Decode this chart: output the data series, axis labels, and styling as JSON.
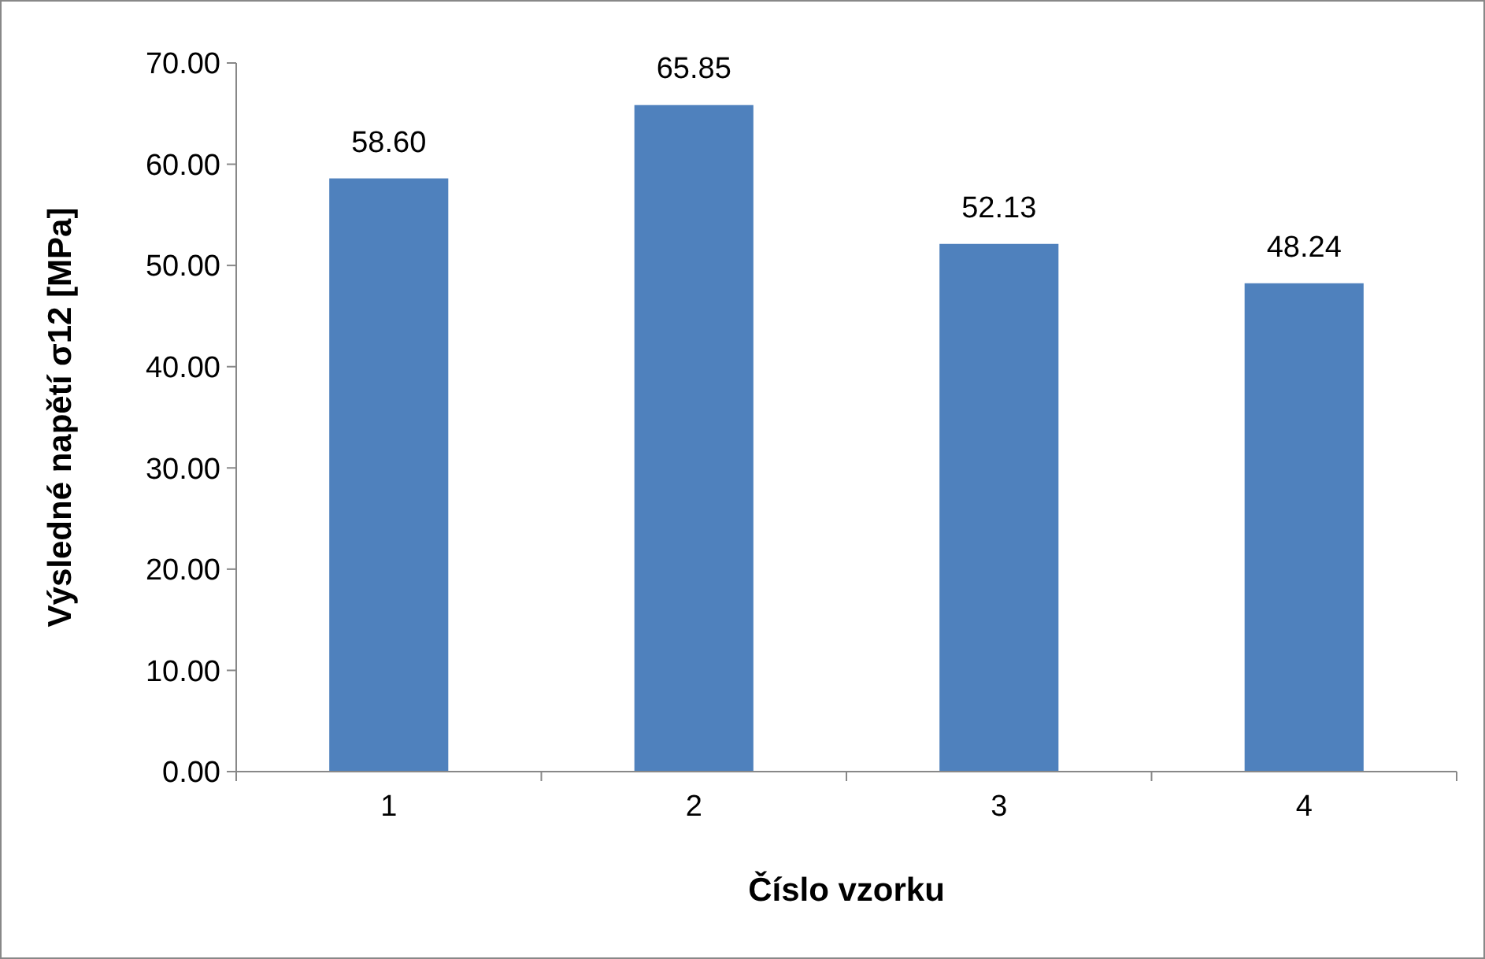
{
  "chart_data": {
    "type": "bar",
    "xlabel": "Číslo vzorku",
    "ylabel": "Výsledné napětí σ12 [MPa]",
    "categories": [
      "1",
      "2",
      "3",
      "4"
    ],
    "values": [
      58.6,
      65.85,
      52.13,
      48.24
    ],
    "value_labels": [
      "58.60",
      "65.85",
      "52.13",
      "48.24"
    ],
    "color": "#4f81bd",
    "ylim": [
      0,
      70
    ],
    "yticks": [
      {
        "value": 0,
        "label": "0.00"
      },
      {
        "value": 10,
        "label": "10.00"
      },
      {
        "value": 20,
        "label": "20.00"
      },
      {
        "value": 30,
        "label": "30.00"
      },
      {
        "value": 40,
        "label": "40.00"
      },
      {
        "value": 50,
        "label": "50.00"
      },
      {
        "value": 60,
        "label": "60.00"
      },
      {
        "value": 70,
        "label": "70.00"
      }
    ],
    "grid": false
  }
}
